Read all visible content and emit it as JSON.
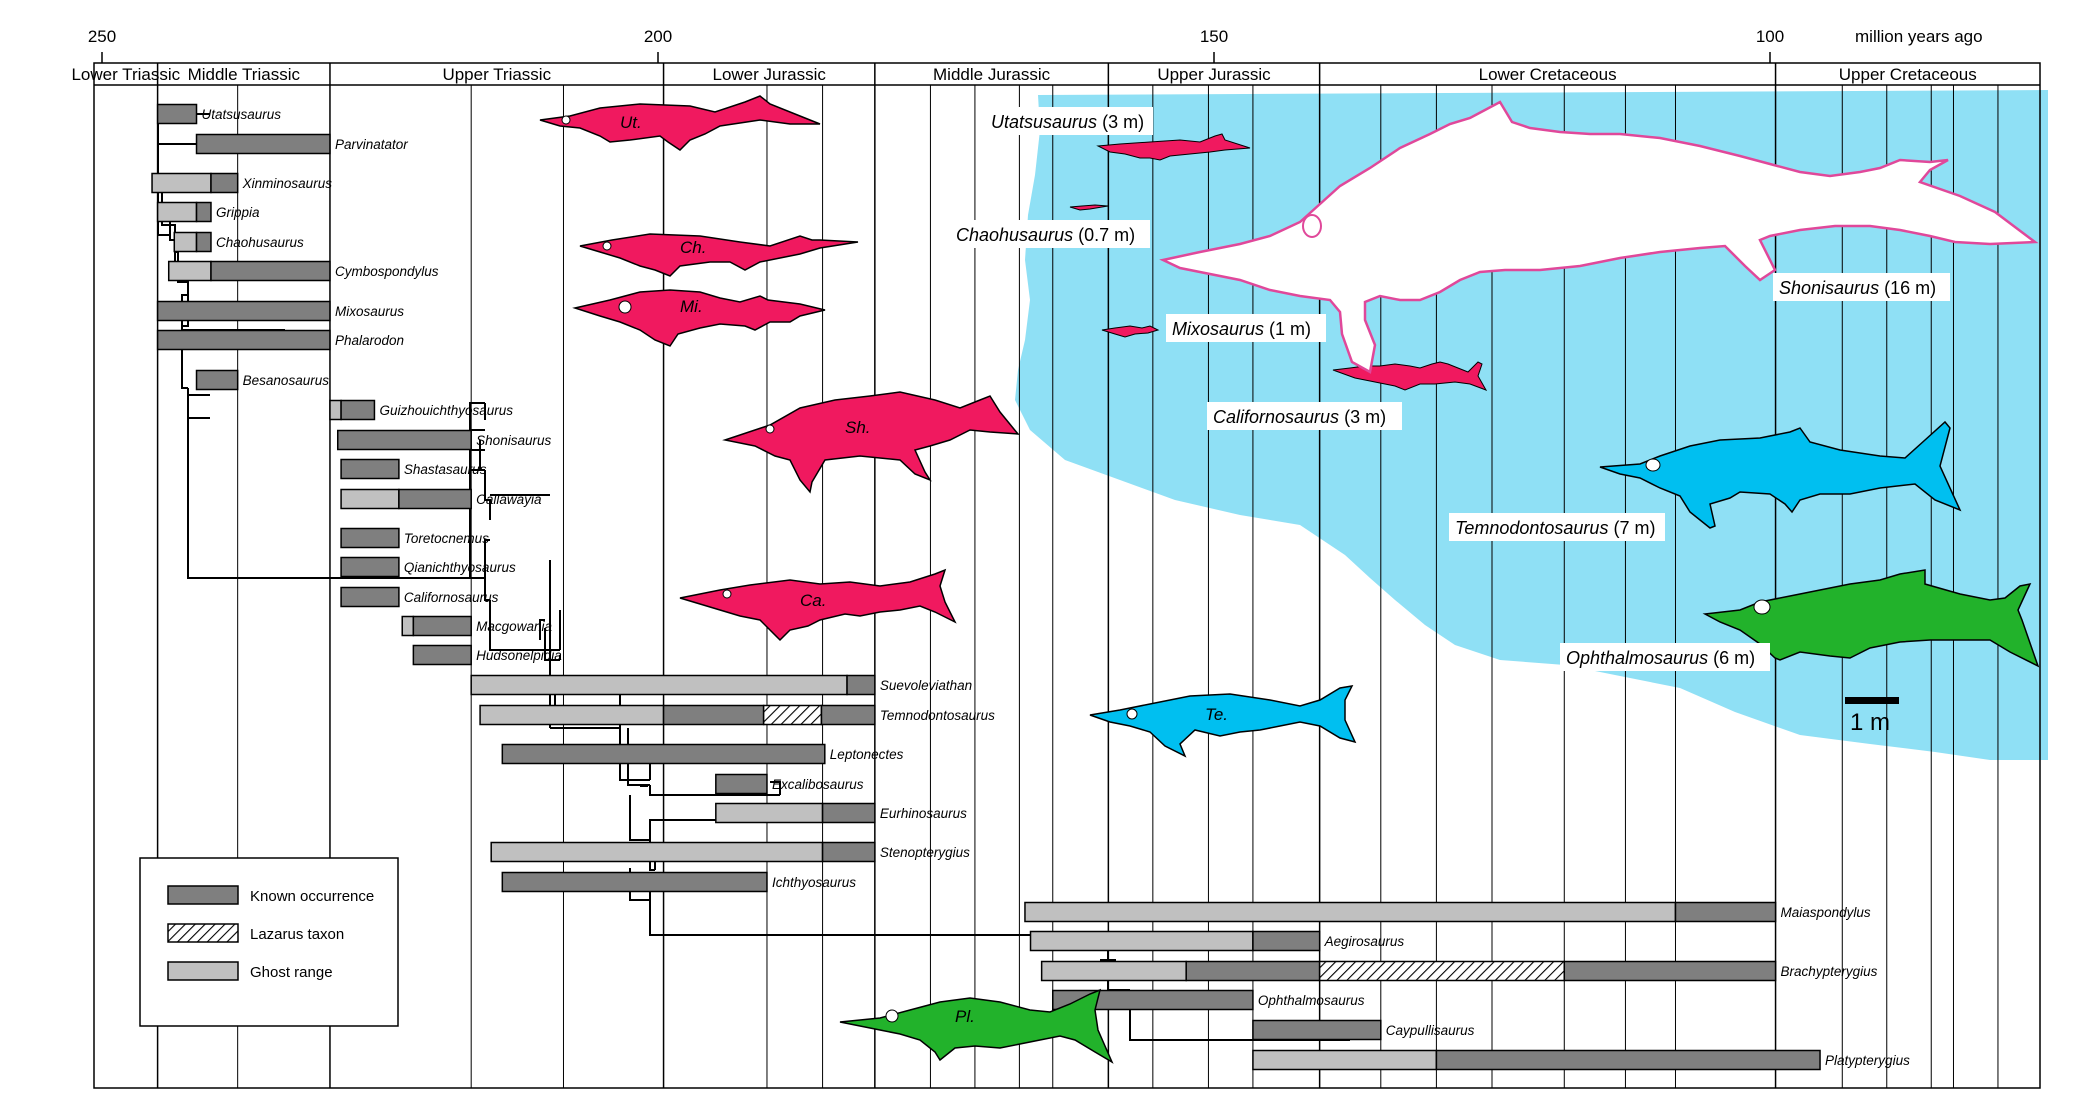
{
  "axis": {
    "unit_label": "million years ago",
    "ticks": [
      {
        "value": 250,
        "label": "250"
      },
      {
        "value": 200,
        "label": "200"
      },
      {
        "value": 150,
        "label": "150"
      },
      {
        "value": 100,
        "label": "100"
      }
    ]
  },
  "periods": [
    {
      "name": "Lower Triassic",
      "start": 251,
      "end": 245
    },
    {
      "name": "Middle Triassic",
      "start": 245,
      "end": 229.5
    },
    {
      "name": "Upper Triassic",
      "start": 229.5,
      "end": 199.5
    },
    {
      "name": "Lower Jurassic",
      "start": 199.5,
      "end": 180.5
    },
    {
      "name": "Middle Jurassic",
      "start": 180.5,
      "end": 159.5
    },
    {
      "name": "Upper Jurassic",
      "start": 159.5,
      "end": 140.5
    },
    {
      "name": "Lower Cretaceous",
      "start": 140.5,
      "end": 99.5
    },
    {
      "name": "Upper Cretaceous",
      "start": 99.5,
      "end": 66
    }
  ],
  "taxa": [
    {
      "name": "Utatsusaurus",
      "ghost": null,
      "known": [
        241.5,
        245
      ],
      "lazarus": null
    },
    {
      "name": "Parvinatator",
      "ghost": null,
      "known": [
        241.5,
        229.5
      ],
      "lazarus": null
    },
    {
      "name": "Xinminosaurus",
      "ghost": [
        245.5,
        240.2
      ],
      "known": [
        240.2,
        237.8
      ],
      "lazarus": null
    },
    {
      "name": "Grippia",
      "ghost": [
        245.0,
        241.5
      ],
      "known": [
        241.5,
        240.2
      ],
      "lazarus": null
    },
    {
      "name": "Chaohusaurus",
      "ghost": [
        243.5,
        241.5
      ],
      "known": [
        241.5,
        240.2
      ],
      "lazarus": null
    },
    {
      "name": "Cymbospondylus",
      "ghost": [
        244.0,
        240.2
      ],
      "known": [
        240.2,
        229.5
      ],
      "lazarus": null
    },
    {
      "name": "Mixosaurus",
      "ghost": null,
      "known": [
        245.0,
        229.5
      ],
      "lazarus": null
    },
    {
      "name": "Phalarodon",
      "ghost": null,
      "known": [
        245.0,
        229.5
      ],
      "lazarus": null
    },
    {
      "name": "Besanosaurus",
      "ghost": null,
      "known": [
        241.5,
        237.8
      ],
      "lazarus": null
    },
    {
      "name": "Guizhouichthyosaurus",
      "ghost": [
        229.5,
        228.5
      ],
      "known": [
        228.5,
        225.5
      ],
      "lazarus": null
    },
    {
      "name": "Shonisaurus",
      "ghost": null,
      "known": [
        228.8,
        216.8
      ],
      "lazarus": null
    },
    {
      "name": "Shastasaurus",
      "ghost": null,
      "known": [
        228.5,
        223.3
      ],
      "lazarus": null
    },
    {
      "name": "Callawayia",
      "ghost": [
        228.5,
        223.3
      ],
      "known": [
        223.3,
        216.8
      ],
      "lazarus": null
    },
    {
      "name": "Toretocnemus",
      "ghost": null,
      "known": [
        228.5,
        223.3
      ],
      "lazarus": null
    },
    {
      "name": "Qianichthyosaurus",
      "ghost": null,
      "known": [
        228.5,
        223.3
      ],
      "lazarus": null
    },
    {
      "name": "Californosaurus",
      "ghost": null,
      "known": [
        228.5,
        223.3
      ],
      "lazarus": null
    },
    {
      "name": "Macgowania",
      "ghost": [
        223.0,
        222.0
      ],
      "known": [
        222.0,
        216.8
      ],
      "lazarus": null
    },
    {
      "name": "Hudsonelpidia",
      "ghost": null,
      "known": [
        222.0,
        216.8
      ],
      "lazarus": null
    },
    {
      "name": "Suevoleviathan",
      "ghost": [
        216.8,
        183.0
      ],
      "known": [
        183.0,
        180.5
      ],
      "lazarus": null
    },
    {
      "name": "Temnodontosaurus",
      "ghost": [
        216.0,
        199.5
      ],
      "known": [
        199.5,
        190.5
      ],
      "lazarus": [
        190.5,
        185.3
      ],
      "known2": [
        185.3,
        180.5
      ]
    },
    {
      "name": "Leptonectes",
      "ghost": null,
      "known": [
        214.0,
        185.0
      ],
      "lazarus": null
    },
    {
      "name": "Excalibosaurus",
      "ghost": null,
      "known": [
        194.8,
        190.2
      ],
      "lazarus": null
    },
    {
      "name": "Eurhinosaurus",
      "ghost": [
        194.8,
        185.2
      ],
      "known": [
        185.2,
        180.5
      ],
      "lazarus": null
    },
    {
      "name": "Stenopterygius",
      "ghost": [
        215.0,
        185.2
      ],
      "known": [
        185.2,
        180.5
      ],
      "lazarus": null
    },
    {
      "name": "Ichthyosaurus",
      "ghost": null,
      "known": [
        214.0,
        190.2
      ],
      "lazarus": null
    },
    {
      "name": "Maiaspondylus",
      "ghost": [
        167.0,
        108.5
      ],
      "known": [
        108.5,
        99.5
      ],
      "lazarus": null
    },
    {
      "name": "Aegirosaurus",
      "ghost": [
        166.5,
        146.5
      ],
      "known": [
        146.5,
        140.5
      ],
      "lazarus": null
    },
    {
      "name": "Brachypterygius",
      "ghost": [
        165.5,
        152.5
      ],
      "known": [
        152.5,
        140.5
      ],
      "lazarus": [
        140.5,
        118.5
      ],
      "known2": [
        118.5,
        99.5
      ]
    },
    {
      "name": "Ophthalmosaurus",
      "ghost": null,
      "known": [
        164.5,
        146.5
      ],
      "lazarus": null
    },
    {
      "name": "Caypullisaurus",
      "ghost": null,
      "known": [
        146.5,
        135.0
      ],
      "lazarus": null
    },
    {
      "name": "Platypterygius",
      "ghost": [
        146.5,
        130.0
      ],
      "known": [
        130.0,
        95.5
      ],
      "lazarus": null
    }
  ],
  "silhouettes": [
    {
      "abbr": "Ut.",
      "color": "#f0195f"
    },
    {
      "abbr": "Ch.",
      "color": "#f0195f"
    },
    {
      "abbr": "Mi.",
      "color": "#f0195f"
    },
    {
      "abbr": "Sh.",
      "color": "#f0195f"
    },
    {
      "abbr": "Ca.",
      "color": "#f0195f"
    },
    {
      "abbr": "Te.",
      "color": "#00bff0"
    },
    {
      "abbr": "Pl.",
      "color": "#22b22b"
    }
  ],
  "size_labels": [
    {
      "genus": "Utatsusaurus",
      "size": "(3 m)"
    },
    {
      "genus": "Chaohusaurus",
      "size": "(0.7 m)"
    },
    {
      "genus": "Mixosaurus",
      "size": "(1 m)"
    },
    {
      "genus": "Californosaurus",
      "size": "(3 m)"
    },
    {
      "genus": "Shonisaurus",
      "size": "(16 m)"
    },
    {
      "genus": "Temnodontosaurus",
      "size": "(7 m)"
    },
    {
      "genus": "Ophthalmosaurus",
      "size": "(6 m)"
    }
  ],
  "scale_bar": {
    "label": "1 m"
  },
  "legend": {
    "items": [
      {
        "key": "known",
        "label": "Known occurrence"
      },
      {
        "key": "lazarus",
        "label": "Lazarus taxon"
      },
      {
        "key": "ghost",
        "label": "Ghost range"
      }
    ]
  },
  "colors": {
    "known": "#7f7f7f",
    "ghost": "#c0c0c0",
    "triassic_fish": "#f0195f",
    "jurassic_fish": "#00bff0",
    "cretaceous_fish": "#22b22b",
    "sea": "#8fe0f5",
    "shonisaurus_outline": "#e0489a"
  }
}
